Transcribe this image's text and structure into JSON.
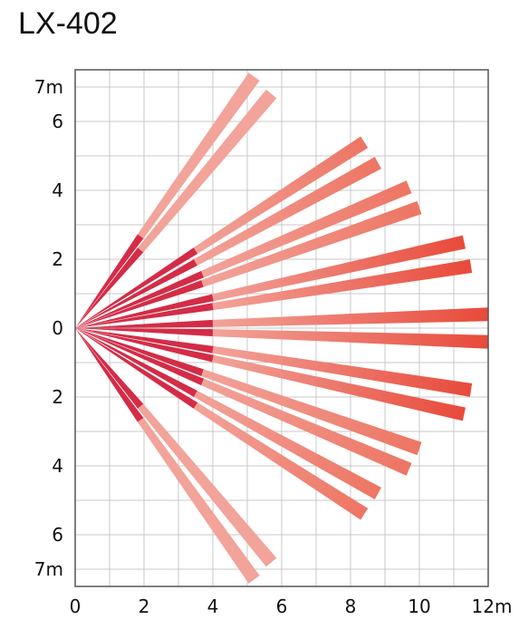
{
  "title": "LX-402",
  "x_axis": {
    "tick_labels": [
      "0",
      "2",
      "4",
      "6",
      "8",
      "10",
      "12m"
    ],
    "range": [
      0,
      12
    ],
    "grid_step": 1
  },
  "y_axis": {
    "tick_labels_upper": [
      "7m",
      "6",
      "4",
      "2"
    ],
    "center_label": "0",
    "tick_labels_lower": [
      "2",
      "4",
      "6",
      "7m"
    ],
    "range": [
      -7.5,
      7.5
    ],
    "grid_step": 1
  },
  "colors": {
    "grid": "#c8c8c8",
    "frame": "#555555",
    "near_zone": "#d42c47",
    "far_light": "#f2a39a",
    "far_mid": "#ed7563",
    "far_strong": "#e84a3a"
  },
  "beams": [
    {
      "tip": [
        5.2,
        7.3
      ],
      "inner": 1.9
    },
    {
      "tip": [
        5.7,
        6.8
      ],
      "inner": 1.9
    },
    {
      "tip": [
        8.4,
        5.4
      ],
      "inner": 3.5
    },
    {
      "tip": [
        8.8,
        4.8
      ],
      "inner": 3.5
    },
    {
      "tip": [
        9.7,
        4.1
      ],
      "inner": 3.7
    },
    {
      "tip": [
        10.0,
        3.5
      ],
      "inner": 3.7
    },
    {
      "tip": [
        11.3,
        2.5
      ],
      "inner": 4.0
    },
    {
      "tip": [
        11.5,
        1.8
      ],
      "inner": 4.0
    },
    {
      "tip": [
        12.0,
        0.4
      ],
      "inner": 4.0
    },
    {
      "tip": [
        12.0,
        -0.4
      ],
      "inner": 4.0
    },
    {
      "tip": [
        11.5,
        -1.8
      ],
      "inner": 4.0
    },
    {
      "tip": [
        11.3,
        -2.5
      ],
      "inner": 4.0
    },
    {
      "tip": [
        10.0,
        -3.5
      ],
      "inner": 3.7
    },
    {
      "tip": [
        9.7,
        -4.1
      ],
      "inner": 3.7
    },
    {
      "tip": [
        8.8,
        -4.8
      ],
      "inner": 3.5
    },
    {
      "tip": [
        8.4,
        -5.4
      ],
      "inner": 3.5
    },
    {
      "tip": [
        5.7,
        -6.8
      ],
      "inner": 1.9
    },
    {
      "tip": [
        5.2,
        -7.3
      ],
      "inner": 1.9
    }
  ]
}
